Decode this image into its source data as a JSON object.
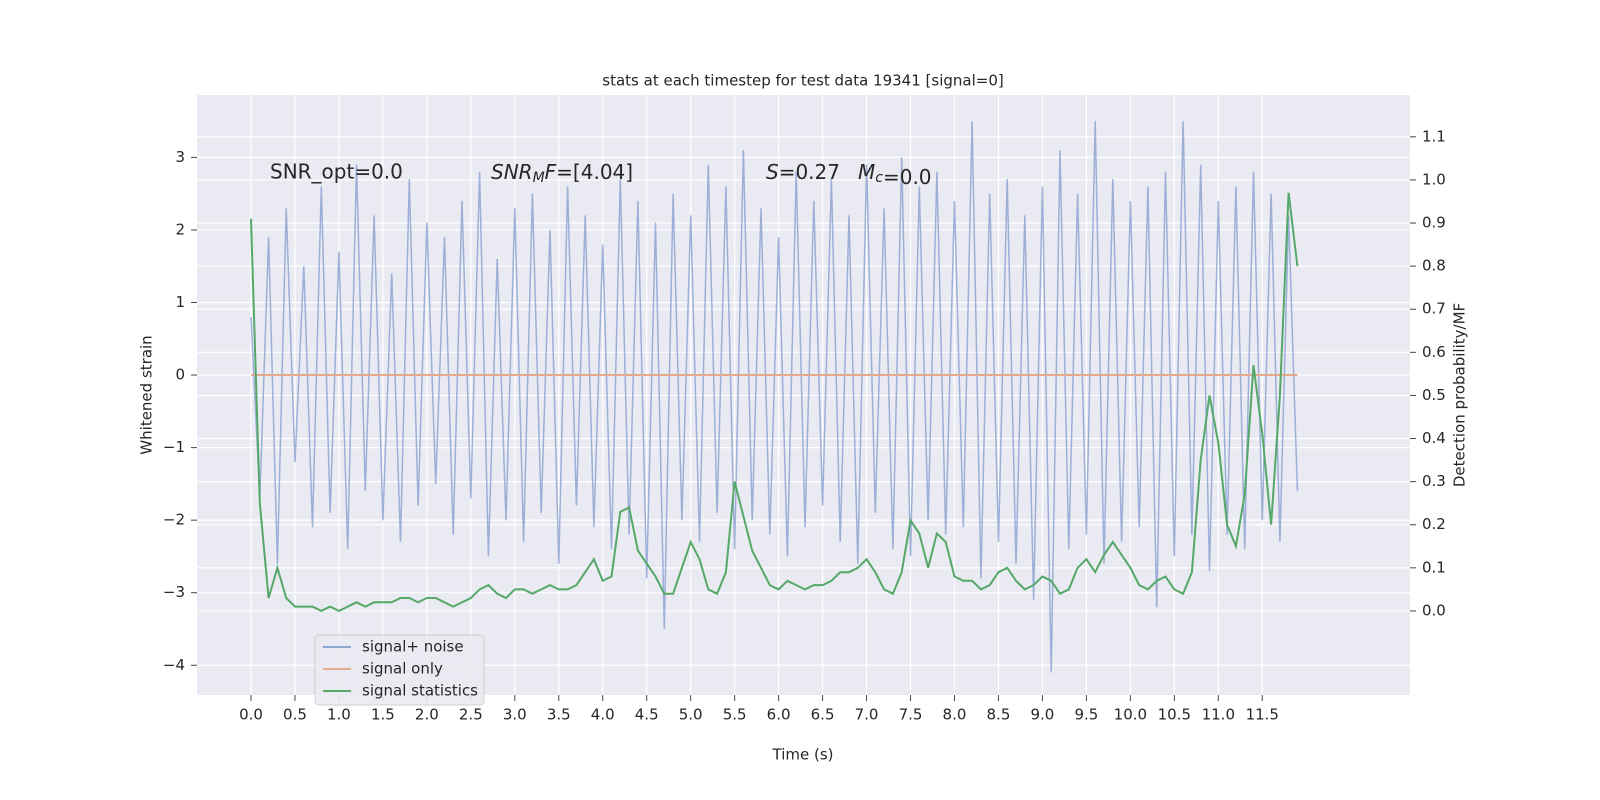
{
  "chart_data": {
    "type": "line",
    "title": "stats at each timestep for test data 19341 [signal=0]",
    "xlabel": "Time (s)",
    "ylabel": "Whitened strain",
    "y2label": "Detection probability/MF",
    "x": [
      0.0,
      0.1,
      0.2,
      0.3,
      0.4,
      0.5,
      0.6,
      0.7,
      0.8,
      0.9,
      1.0,
      1.1,
      1.2,
      1.3,
      1.4,
      1.5,
      1.6,
      1.7,
      1.8,
      1.9,
      2.0,
      2.1,
      2.2,
      2.3,
      2.4,
      2.5,
      2.6,
      2.7,
      2.8,
      2.9,
      3.0,
      3.1,
      3.2,
      3.3,
      3.4,
      3.5,
      3.6,
      3.7,
      3.8,
      3.9,
      4.0,
      4.1,
      4.2,
      4.3,
      4.4,
      4.5,
      4.6,
      4.7,
      4.8,
      4.9,
      5.0,
      5.1,
      5.2,
      5.3,
      5.4,
      5.5,
      5.6,
      5.7,
      5.8,
      5.9,
      6.0,
      6.1,
      6.2,
      6.3,
      6.4,
      6.5,
      6.6,
      6.7,
      6.8,
      6.9,
      7.0,
      7.1,
      7.2,
      7.3,
      7.4,
      7.5,
      7.6,
      7.7,
      7.8,
      7.9,
      8.0,
      8.1,
      8.2,
      8.3,
      8.4,
      8.5,
      8.6,
      8.7,
      8.8,
      8.9,
      9.0,
      9.1,
      9.2,
      9.3,
      9.4,
      9.5,
      9.6,
      9.7,
      9.8,
      9.9,
      10.0,
      10.1,
      10.2,
      10.3,
      10.4,
      10.5,
      10.6,
      10.7,
      10.8,
      10.9,
      11.0,
      11.1,
      11.2,
      11.3,
      11.4,
      11.5,
      11.6,
      11.7,
      11.8,
      11.9
    ],
    "series": [
      {
        "name": "signal+ noise",
        "color": "#8fa5d1",
        "axis": "y",
        "values": [
          0.8,
          -1.7,
          1.9,
          -2.6,
          2.3,
          -1.2,
          1.5,
          -2.1,
          2.6,
          -1.9,
          1.7,
          -2.4,
          2.9,
          -1.6,
          2.2,
          -2.0,
          1.4,
          -2.3,
          2.7,
          -1.8,
          2.1,
          -1.5,
          1.9,
          -2.2,
          2.4,
          -1.7,
          2.8,
          -2.5,
          1.6,
          -2.0,
          2.3,
          -2.3,
          2.5,
          -1.9,
          2.0,
          -2.6,
          2.6,
          -1.8,
          2.2,
          -2.1,
          1.8,
          -2.4,
          2.7,
          -2.2,
          2.4,
          -2.8,
          2.1,
          -3.5,
          2.5,
          -2.0,
          2.2,
          -2.3,
          2.9,
          -1.9,
          2.6,
          -2.4,
          3.1,
          -2.0,
          2.3,
          -2.2,
          1.9,
          -2.5,
          2.8,
          -2.1,
          2.4,
          -1.8,
          2.7,
          -2.3,
          2.2,
          -2.6,
          2.9,
          -1.9,
          2.3,
          -2.4,
          3.0,
          -2.5,
          2.6,
          -2.0,
          2.8,
          -2.2,
          2.4,
          -2.1,
          3.5,
          -2.8,
          2.5,
          -2.3,
          2.7,
          -2.6,
          2.2,
          -3.1,
          2.6,
          -4.1,
          3.1,
          -2.4,
          2.5,
          -2.2,
          3.5,
          -2.6,
          2.7,
          -2.3,
          2.4,
          -2.1,
          2.6,
          -3.2,
          2.8,
          -2.5,
          3.5,
          -2.2,
          2.9,
          -2.7,
          2.4,
          -2.2,
          2.6,
          -2.4,
          2.8,
          -2.0,
          2.5,
          -2.3,
          2.2,
          -1.6
        ]
      },
      {
        "name": "signal only",
        "color": "#e5a98b",
        "axis": "y",
        "values": [
          0,
          0,
          0,
          0,
          0,
          0,
          0,
          0,
          0,
          0,
          0,
          0,
          0,
          0,
          0,
          0,
          0,
          0,
          0,
          0,
          0,
          0,
          0,
          0,
          0,
          0,
          0,
          0,
          0,
          0,
          0,
          0,
          0,
          0,
          0,
          0,
          0,
          0,
          0,
          0,
          0,
          0,
          0,
          0,
          0,
          0,
          0,
          0,
          0,
          0,
          0,
          0,
          0,
          0,
          0,
          0,
          0,
          0,
          0,
          0,
          0,
          0,
          0,
          0,
          0,
          0,
          0,
          0,
          0,
          0,
          0,
          0,
          0,
          0,
          0,
          0,
          0,
          0,
          0,
          0,
          0,
          0,
          0,
          0,
          0,
          0,
          0,
          0,
          0,
          0,
          0,
          0,
          0,
          0,
          0,
          0,
          0,
          0,
          0,
          0,
          0,
          0,
          0,
          0,
          0,
          0,
          0,
          0,
          0,
          0,
          0,
          0,
          0,
          0,
          0,
          0,
          0,
          0,
          0,
          0
        ]
      },
      {
        "name": "signal statistics",
        "color": "#55a868",
        "axis": "y2",
        "values": [
          0.91,
          0.25,
          0.03,
          0.1,
          0.03,
          0.01,
          0.01,
          0.01,
          0.0,
          0.01,
          0.0,
          0.01,
          0.02,
          0.01,
          0.02,
          0.02,
          0.02,
          0.03,
          0.03,
          0.02,
          0.03,
          0.03,
          0.02,
          0.01,
          0.02,
          0.03,
          0.05,
          0.06,
          0.04,
          0.03,
          0.05,
          0.05,
          0.04,
          0.05,
          0.06,
          0.05,
          0.05,
          0.06,
          0.09,
          0.12,
          0.07,
          0.08,
          0.23,
          0.24,
          0.14,
          0.11,
          0.08,
          0.04,
          0.04,
          0.1,
          0.16,
          0.12,
          0.05,
          0.04,
          0.09,
          0.3,
          0.22,
          0.14,
          0.1,
          0.06,
          0.05,
          0.07,
          0.06,
          0.05,
          0.06,
          0.06,
          0.07,
          0.09,
          0.09,
          0.1,
          0.12,
          0.09,
          0.05,
          0.04,
          0.09,
          0.21,
          0.18,
          0.1,
          0.18,
          0.16,
          0.08,
          0.07,
          0.07,
          0.05,
          0.06,
          0.09,
          0.1,
          0.07,
          0.05,
          0.06,
          0.08,
          0.07,
          0.04,
          0.05,
          0.1,
          0.12,
          0.09,
          0.13,
          0.16,
          0.13,
          0.1,
          0.06,
          0.05,
          0.07,
          0.08,
          0.05,
          0.04,
          0.09,
          0.35,
          0.5,
          0.39,
          0.2,
          0.15,
          0.27,
          0.57,
          0.41,
          0.2,
          0.5,
          0.97,
          0.8
        ]
      }
    ],
    "annotations": [
      {
        "text": "SNR_opt=0.0",
        "math": false
      },
      {
        "text": "SNR_MF=[4.04]",
        "math": true
      },
      {
        "text": "S=0.27",
        "math": true
      },
      {
        "text": "M_c=0.0",
        "math": true
      }
    ],
    "xlim": [
      -0.614,
      13.18
    ],
    "ylim": [
      -4.41,
      3.86
    ],
    "y2lim": [
      -0.195,
      1.197
    ],
    "xticks": [
      {
        "value": 0,
        "label": "0.0"
      },
      {
        "value": 0.5,
        "label": "0.5"
      },
      {
        "value": 1,
        "label": "1.0"
      },
      {
        "value": 1.5,
        "label": "1.5"
      },
      {
        "value": 2,
        "label": "2.0"
      },
      {
        "value": 2.5,
        "label": "2.5"
      },
      {
        "value": 3,
        "label": "3.0"
      },
      {
        "value": 3.5,
        "label": "3.5"
      },
      {
        "value": 4,
        "label": "4.0"
      },
      {
        "value": 4.5,
        "label": "4.5"
      },
      {
        "value": 5,
        "label": "5.0"
      },
      {
        "value": 5.5,
        "label": "5.5"
      },
      {
        "value": 6,
        "label": "6.0"
      },
      {
        "value": 6.5,
        "label": "6.5"
      },
      {
        "value": 7,
        "label": "7.0"
      },
      {
        "value": 7.5,
        "label": "7.5"
      },
      {
        "value": 8,
        "label": "8.0"
      },
      {
        "value": 8.5,
        "label": "8.5"
      },
      {
        "value": 9,
        "label": "9.0"
      },
      {
        "value": 9.5,
        "label": "9.5"
      },
      {
        "value": 10,
        "label": "10.0"
      },
      {
        "value": 10.5,
        "label": "10.5"
      },
      {
        "value": 11,
        "label": "11.0"
      },
      {
        "value": 11.5,
        "label": "11.5"
      }
    ],
    "yticks": [
      {
        "value": -4,
        "label": "−4"
      },
      {
        "value": -3,
        "label": "−3"
      },
      {
        "value": -2,
        "label": "−2"
      },
      {
        "value": -1,
        "label": "−1"
      },
      0,
      1,
      2,
      3
    ],
    "y2ticks": [
      {
        "value": 0,
        "label": "0.0"
      },
      {
        "value": 0.1,
        "label": "0.1"
      },
      {
        "value": 0.2,
        "label": "0.2"
      },
      {
        "value": 0.3,
        "label": "0.3"
      },
      {
        "value": 0.4,
        "label": "0.4"
      },
      {
        "value": 0.5,
        "label": "0.5"
      },
      {
        "value": 0.6,
        "label": "0.6"
      },
      {
        "value": 0.7,
        "label": "0.7"
      },
      {
        "value": 0.8,
        "label": "0.8"
      },
      {
        "value": 0.9,
        "label": "0.9"
      },
      {
        "value": 1,
        "label": "1.0"
      },
      {
        "value": 1.1,
        "label": "1.1"
      }
    ],
    "grid": true,
    "legend": "lower left"
  }
}
